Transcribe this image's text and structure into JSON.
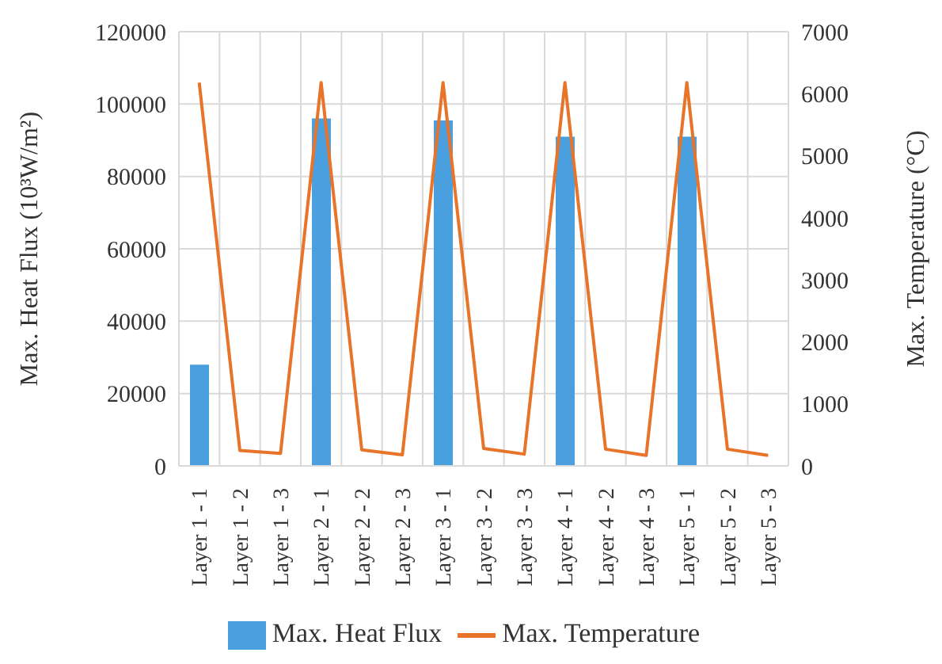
{
  "chart_data": {
    "type": "bar",
    "ylabel": "Max. Heat Flux (10³W/m²)",
    "y2label": "Max. Temperature (°C)",
    "categories": [
      "Layer 1 - 1",
      "Layer 1 - 2",
      "Layer 1 - 3",
      "Layer 2 - 1",
      "Layer 2 - 2",
      "Layer 2 - 3",
      "Layer 3 - 1",
      "Layer 3 - 2",
      "Layer 3 - 3",
      "Layer 4 - 1",
      "Layer 4 - 2",
      "Layer 4 - 3",
      "Layer 5 - 1",
      "Layer 5 - 2",
      "Layer 5 - 3"
    ],
    "series": [
      {
        "name": "Max. Heat Flux",
        "color": "#4a9fdf",
        "values": [
          28000,
          null,
          null,
          96000,
          null,
          null,
          95500,
          null,
          null,
          91000,
          null,
          null,
          91000,
          null,
          null
        ]
      },
      {
        "name": "Max. Temperature",
        "type": "line",
        "axis": "y2",
        "color": "#e8742a",
        "values": [
          6180,
          250,
          200,
          6180,
          260,
          180,
          6180,
          280,
          190,
          6180,
          270,
          170,
          6180,
          270,
          170
        ]
      }
    ],
    "ylim": [
      0,
      120000
    ],
    "yticks": [
      0,
      20000,
      40000,
      60000,
      80000,
      100000,
      120000
    ],
    "y2lim": [
      0,
      7000
    ],
    "y2ticks": [
      0,
      1000,
      2000,
      3000,
      4000,
      5000,
      6000,
      7000
    ],
    "grid": true,
    "legend": "bottom",
    "marker": "none"
  }
}
